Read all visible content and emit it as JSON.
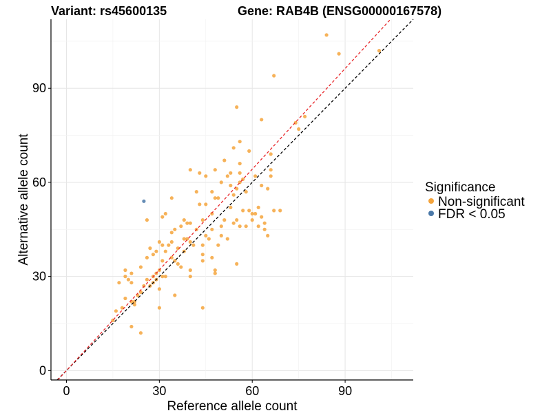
{
  "chart_data": {
    "type": "scatter",
    "title_left": "Variant: rs45600135",
    "title_right": "Gene: RAB4B (ENSG00000167578)",
    "xlabel": "Reference allele count",
    "ylabel": "Alternative allele count",
    "xlim": [
      -5,
      112
    ],
    "ylim": [
      -3,
      112
    ],
    "xticks": [
      0,
      30,
      60,
      90
    ],
    "yticks": [
      0,
      30,
      60,
      90
    ],
    "grid": true,
    "legend": {
      "title": "Significance",
      "position": "right",
      "entries": [
        {
          "label": "Non-significant",
          "color": "#f4a43c"
        },
        {
          "label": "FDR < 0.05",
          "color": "#4a78a8"
        }
      ]
    },
    "reference_lines": [
      {
        "name": "identity",
        "slope": 1.0,
        "intercept": 0,
        "color": "#000000",
        "dash": "4,3"
      },
      {
        "name": "fit",
        "slope": 1.07,
        "intercept": 0,
        "color": "#e8262a",
        "dash": "4,3"
      }
    ],
    "series": [
      {
        "name": "Non-significant",
        "color": "#f4a43c",
        "points": [
          [
            84,
            107
          ],
          [
            88,
            101
          ],
          [
            101,
            102
          ],
          [
            67,
            94
          ],
          [
            55,
            84
          ],
          [
            63,
            80
          ],
          [
            77,
            81
          ],
          [
            74,
            79
          ],
          [
            75,
            77
          ],
          [
            56,
            73
          ],
          [
            54,
            71
          ],
          [
            59,
            70
          ],
          [
            66,
            69
          ],
          [
            51,
            67
          ],
          [
            56,
            66
          ],
          [
            40,
            64
          ],
          [
            48,
            64
          ],
          [
            56,
            63
          ],
          [
            66,
            64
          ],
          [
            61,
            62
          ],
          [
            43,
            63
          ],
          [
            45,
            62
          ],
          [
            52,
            62
          ],
          [
            53,
            63
          ],
          [
            57,
            61
          ],
          [
            66,
            62
          ],
          [
            56,
            60
          ],
          [
            63,
            59
          ],
          [
            50,
            60
          ],
          [
            53,
            59
          ],
          [
            55,
            58
          ],
          [
            65,
            58
          ],
          [
            58,
            57
          ],
          [
            42,
            57
          ],
          [
            47,
            57
          ],
          [
            54,
            56
          ],
          [
            48,
            55
          ],
          [
            49,
            55
          ],
          [
            34,
            55
          ],
          [
            45,
            53
          ],
          [
            43,
            53
          ],
          [
            53,
            52
          ],
          [
            57,
            51
          ],
          [
            67,
            51
          ],
          [
            69,
            51
          ],
          [
            59,
            51
          ],
          [
            60,
            50
          ],
          [
            61,
            50
          ],
          [
            62,
            52
          ],
          [
            63,
            49
          ],
          [
            47,
            50
          ],
          [
            51,
            48
          ],
          [
            44,
            48
          ],
          [
            31,
            49
          ],
          [
            32,
            50
          ],
          [
            26,
            48
          ],
          [
            38,
            48
          ],
          [
            39,
            47
          ],
          [
            40,
            47
          ],
          [
            42,
            45
          ],
          [
            35,
            45
          ],
          [
            34,
            44
          ],
          [
            47,
            45
          ],
          [
            37,
            46
          ],
          [
            50,
            46
          ],
          [
            54,
            47
          ],
          [
            55,
            48
          ],
          [
            56,
            46
          ],
          [
            58,
            46
          ],
          [
            60,
            48
          ],
          [
            64,
            47
          ],
          [
            64,
            45
          ],
          [
            62,
            46
          ],
          [
            65,
            43
          ],
          [
            38,
            42
          ],
          [
            39,
            42
          ],
          [
            40,
            41
          ],
          [
            45,
            43
          ],
          [
            46,
            42
          ],
          [
            41,
            40
          ],
          [
            49,
            40
          ],
          [
            50,
            43
          ],
          [
            52,
            42
          ],
          [
            44,
            40
          ],
          [
            30,
            41
          ],
          [
            31,
            40
          ],
          [
            34,
            41
          ],
          [
            33,
            40
          ],
          [
            36,
            39
          ],
          [
            38,
            38
          ],
          [
            32,
            38
          ],
          [
            29,
            38
          ],
          [
            27,
            39
          ],
          [
            24,
            33
          ],
          [
            28,
            37
          ],
          [
            31,
            35
          ],
          [
            26,
            36
          ],
          [
            34,
            36
          ],
          [
            35,
            35
          ],
          [
            36,
            34
          ],
          [
            37,
            33
          ],
          [
            40,
            32
          ],
          [
            44,
            37
          ],
          [
            47,
            36
          ],
          [
            55,
            34
          ],
          [
            44,
            35
          ],
          [
            48,
            31
          ],
          [
            48,
            32
          ],
          [
            40,
            30
          ],
          [
            30,
            32
          ],
          [
            29,
            31
          ],
          [
            28,
            28
          ],
          [
            27,
            27
          ],
          [
            31,
            30
          ],
          [
            32,
            30
          ],
          [
            28,
            30
          ],
          [
            26,
            29
          ],
          [
            25,
            27
          ],
          [
            24,
            25
          ],
          [
            30,
            26
          ],
          [
            29,
            29
          ],
          [
            35,
            24
          ],
          [
            21,
            28
          ],
          [
            20,
            29
          ],
          [
            19,
            30
          ],
          [
            19,
            32
          ],
          [
            21,
            31
          ],
          [
            17,
            28
          ],
          [
            19,
            23
          ],
          [
            18,
            20
          ],
          [
            16,
            19
          ],
          [
            21,
            22
          ],
          [
            22,
            21
          ],
          [
            22,
            22
          ],
          [
            23,
            24
          ],
          [
            21,
            14
          ],
          [
            24,
            12
          ],
          [
            15,
            16
          ],
          [
            30,
            20
          ],
          [
            44,
            20
          ]
        ]
      },
      {
        "name": "FDR < 0.05",
        "color": "#4a78a8",
        "points": [
          [
            25,
            54
          ]
        ]
      }
    ]
  }
}
